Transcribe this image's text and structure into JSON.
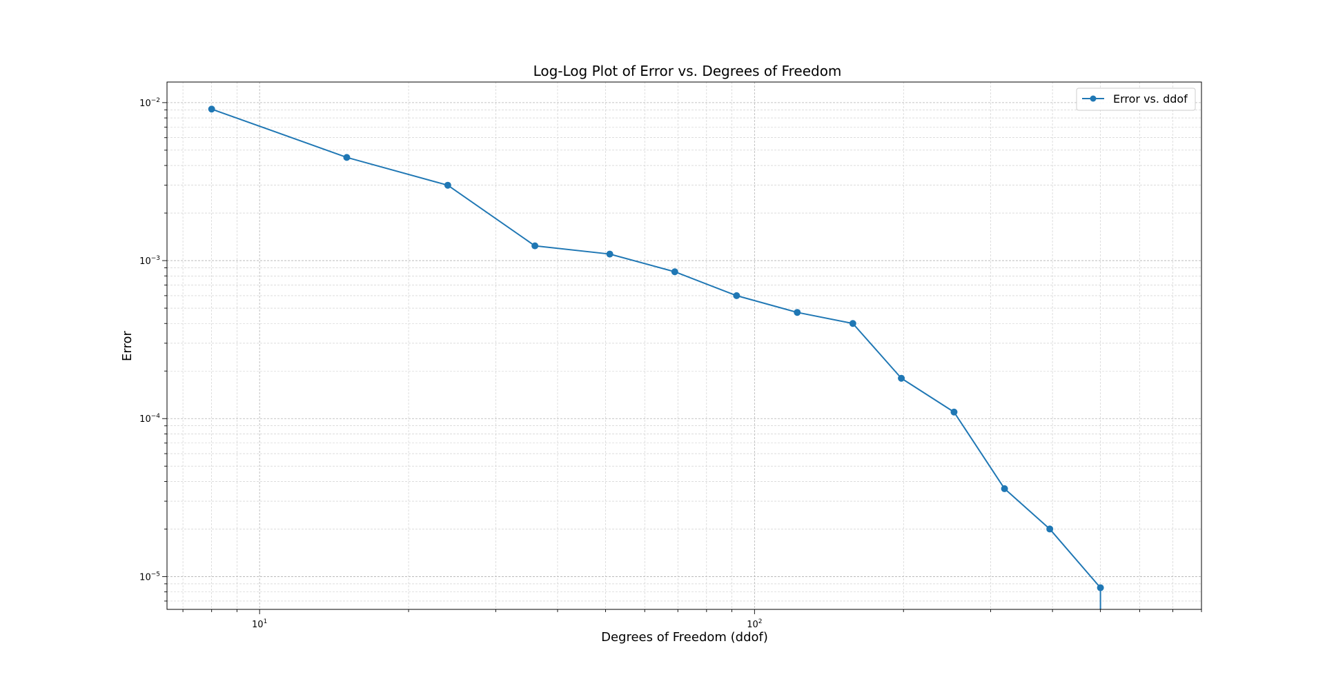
{
  "chart_data": {
    "type": "line",
    "title": "Log-Log Plot of Error vs. Degrees of Freedom",
    "xlabel": "Degrees of Freedom (ddof)",
    "ylabel": "Error",
    "xscale": "log",
    "yscale": "log",
    "xlim": [
      6.5,
      800
    ],
    "ylim": [
      6.2e-06,
      0.0135
    ],
    "grid": true,
    "grid_minor": true,
    "legend_position": "upper-right",
    "x_major_ticks": [
      10,
      100
    ],
    "x_tick_labels": [
      {
        "base": "10",
        "exp": "1"
      },
      {
        "base": "10",
        "exp": "2"
      }
    ],
    "y_major_ticks": [
      1e-05,
      0.0001,
      0.001,
      0.01
    ],
    "y_tick_labels": [
      {
        "base": "10",
        "exp": "−5"
      },
      {
        "base": "10",
        "exp": "−4"
      },
      {
        "base": "10",
        "exp": "−3"
      },
      {
        "base": "10",
        "exp": "−2"
      }
    ],
    "series": [
      {
        "name": "Error vs. ddof",
        "color": "#1f77b4",
        "marker": "circle",
        "x": [
          8,
          15,
          24,
          36,
          51,
          69,
          92,
          122,
          158,
          198,
          253,
          320,
          395,
          500,
          500
        ],
        "y": [
          0.0091,
          0.0045,
          0.003,
          0.00124,
          0.0011,
          0.00085,
          0.0006,
          0.00047,
          0.0004,
          0.00018,
          0.00011,
          3.6e-05,
          2e-05,
          8.5e-06,
          6.2e-06
        ]
      }
    ]
  }
}
